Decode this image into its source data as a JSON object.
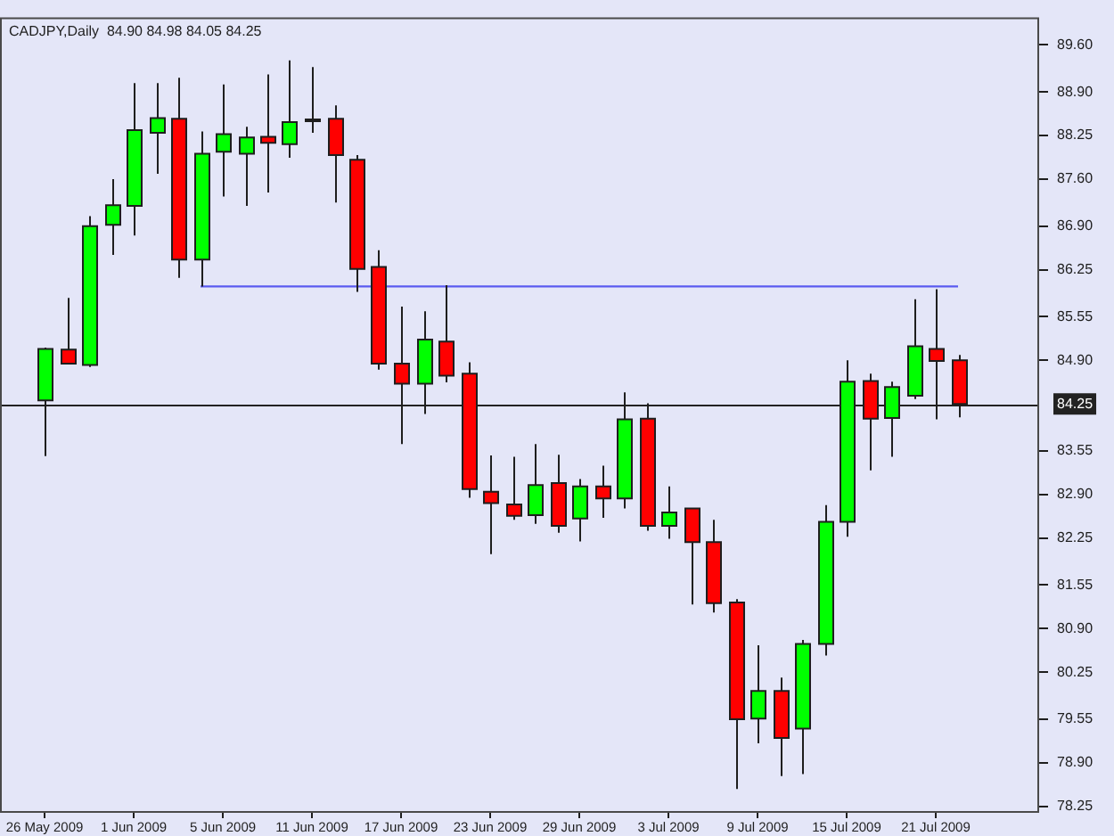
{
  "chart_data": {
    "type": "candlestick",
    "title": "CADJPY,Daily  84.90 84.98 84.05 84.25",
    "categories": [
      "26 May 2009",
      null,
      null,
      null,
      "1 Jun 2009",
      null,
      null,
      null,
      "5 Jun 2009",
      null,
      null,
      null,
      "11 Jun 2009",
      null,
      null,
      null,
      "17 Jun 2009",
      null,
      null,
      null,
      "23 Jun 2009",
      null,
      null,
      null,
      "29 Jun 2009",
      null,
      null,
      null,
      "3 Jul 2009",
      null,
      null,
      null,
      "9 Jul 2009",
      null,
      null,
      null,
      "15 Jul 2009",
      null,
      null,
      null,
      "21 Jul 2009",
      null
    ],
    "series": [
      {
        "ohlc": [
          [
            84.3,
            85.09,
            83.47,
            85.07
          ],
          [
            85.06,
            85.83,
            84.84,
            84.85
          ],
          [
            84.83,
            87.05,
            84.8,
            86.9
          ],
          [
            86.92,
            87.6,
            86.47,
            87.21
          ],
          [
            87.2,
            89.03,
            86.76,
            88.33
          ],
          [
            88.29,
            89.03,
            87.68,
            88.51
          ],
          [
            88.5,
            89.11,
            86.13,
            86.4
          ],
          [
            86.4,
            88.31,
            86.0,
            87.98
          ],
          [
            88.01,
            89.01,
            87.34,
            88.27
          ],
          [
            87.98,
            88.38,
            87.2,
            88.22
          ],
          [
            88.23,
            89.16,
            87.4,
            88.14
          ],
          [
            88.12,
            89.37,
            87.92,
            88.45
          ],
          [
            88.49,
            89.27,
            88.29,
            88.49
          ],
          [
            88.5,
            88.7,
            87.25,
            87.96
          ],
          [
            87.89,
            87.96,
            85.92,
            86.26
          ],
          [
            86.29,
            86.54,
            84.76,
            84.85
          ],
          [
            84.85,
            85.7,
            83.65,
            84.55
          ],
          [
            84.55,
            85.63,
            84.1,
            85.21
          ],
          [
            85.18,
            86.02,
            84.57,
            84.67
          ],
          [
            84.7,
            84.87,
            82.85,
            82.98
          ],
          [
            82.94,
            83.48,
            82.01,
            82.77
          ],
          [
            82.75,
            83.46,
            82.52,
            82.58
          ],
          [
            82.59,
            83.65,
            82.46,
            83.04
          ],
          [
            83.07,
            83.49,
            82.33,
            82.43
          ],
          [
            82.54,
            83.13,
            82.2,
            83.02
          ],
          [
            83.02,
            83.33,
            82.55,
            82.84
          ],
          [
            82.84,
            84.42,
            82.69,
            84.02
          ],
          [
            84.03,
            84.26,
            82.36,
            82.43
          ],
          [
            82.43,
            83.02,
            82.24,
            82.63
          ],
          [
            82.69,
            82.69,
            81.26,
            82.19
          ],
          [
            82.19,
            82.52,
            81.14,
            81.28
          ],
          [
            81.29,
            81.34,
            78.51,
            79.55
          ],
          [
            79.56,
            80.65,
            79.19,
            79.97
          ],
          [
            79.97,
            80.17,
            78.7,
            79.27
          ],
          [
            79.41,
            80.73,
            78.73,
            80.67
          ],
          [
            80.67,
            82.74,
            80.5,
            82.49
          ],
          [
            82.49,
            84.9,
            82.27,
            84.58
          ],
          [
            84.59,
            84.7,
            83.26,
            84.03
          ],
          [
            84.04,
            84.58,
            83.46,
            84.5
          ],
          [
            84.37,
            85.81,
            84.32,
            85.11
          ],
          [
            85.07,
            85.96,
            84.02,
            84.89
          ],
          [
            84.9,
            84.98,
            84.05,
            84.25
          ]
        ],
        "colors": [
          "#00ff00",
          "#ff0000",
          "#00ff00",
          "#00ff00",
          "#00ff00",
          "#00ff00",
          "#ff0000",
          "#00ff00",
          "#00ff00",
          "#00ff00",
          "#ff0000",
          "#00ff00",
          "#000000",
          "#ff0000",
          "#ff0000",
          "#ff0000",
          "#ff0000",
          "#00ff00",
          "#ff0000",
          "#ff0000",
          "#ff0000",
          "#ff0000",
          "#00ff00",
          "#ff0000",
          "#00ff00",
          "#ff0000",
          "#00ff00",
          "#ff0000",
          "#00ff00",
          "#ff0000",
          "#ff0000",
          "#ff0000",
          "#00ff00",
          "#ff0000",
          "#00ff00",
          "#00ff00",
          "#00ff00",
          "#ff0000",
          "#00ff00",
          "#00ff00",
          "#ff0000",
          "#ff0000"
        ]
      },
      {
        "type": "line",
        "color": "#5a5af0",
        "values": [
          null,
          null,
          null,
          null,
          null,
          null,
          null,
          86.0,
          86.0,
          86.0,
          86.0,
          86.0,
          86.0,
          86.0,
          86.0,
          null,
          86.0,
          86.0,
          86.0,
          86.0,
          86.0,
          86.0,
          86.0,
          86.0,
          86.0,
          86.0,
          86.0,
          86.0,
          86.0,
          86.0,
          86.0,
          86.0,
          86.0,
          86.0,
          86.0,
          86.0,
          86.0,
          86.0,
          86.0,
          86.0,
          86.0,
          86.0
        ]
      }
    ],
    "ylim": [
      78.18,
      90.01
    ],
    "yticks": [
      {
        "value": 89.6,
        "label": "89.60"
      },
      {
        "value": 88.9,
        "label": "88.90"
      },
      88.25,
      {
        "value": 87.6,
        "label": "87.60"
      },
      {
        "value": 86.9,
        "label": "86.90"
      },
      86.25,
      85.55,
      {
        "value": 84.9,
        "label": "84.90"
      },
      83.55,
      {
        "value": 82.9,
        "label": "82.90"
      },
      82.25,
      81.55,
      {
        "value": 80.9,
        "label": "80.90"
      },
      80.25,
      79.55,
      {
        "value": 78.9,
        "label": "78.90"
      },
      78.25
    ],
    "ref_lines": [
      {
        "axis": "y",
        "value": 84.25,
        "label": "84.25",
        "color": "#222222"
      }
    ],
    "marker": "none"
  }
}
